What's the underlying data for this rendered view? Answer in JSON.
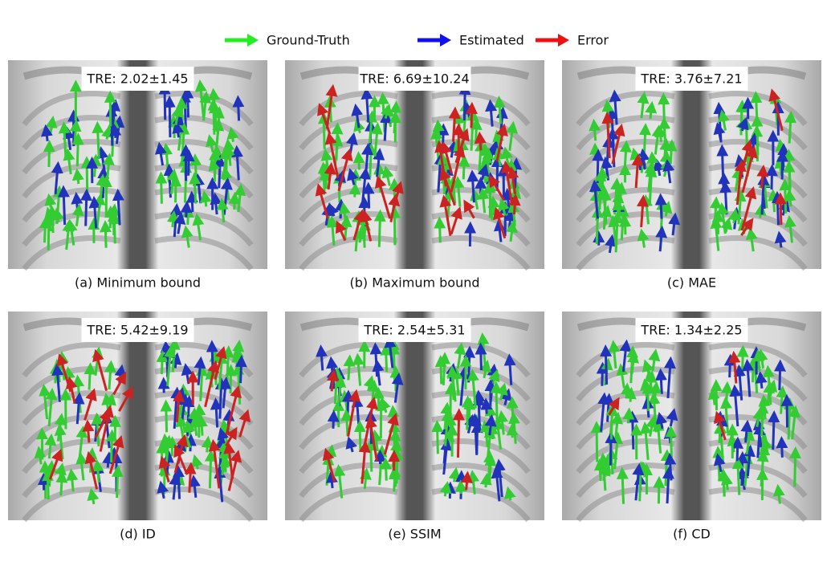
{
  "legend": {
    "items": [
      {
        "label": "Ground-Truth",
        "color": "#22ee22"
      },
      {
        "label": "Estimated",
        "color": "#1010ee"
      },
      {
        "label": "Error",
        "color": "#ee1111"
      }
    ]
  },
  "panels": [
    {
      "tre": "TRE: 2.02±1.45",
      "caption": "(a) Minimum bound"
    },
    {
      "tre": "TRE: 6.69±10.24",
      "caption": "(b) Maximum bound"
    },
    {
      "tre": "TRE: 3.76±7.21",
      "caption": "(c) MAE"
    },
    {
      "tre": "TRE: 5.42±9.19",
      "caption": "(d) ID"
    },
    {
      "tre": "TRE: 2.54±5.31",
      "caption": "(e) SSIM"
    },
    {
      "tre": "TRE: 1.34±2.25",
      "caption": "(f) CD"
    }
  ]
}
